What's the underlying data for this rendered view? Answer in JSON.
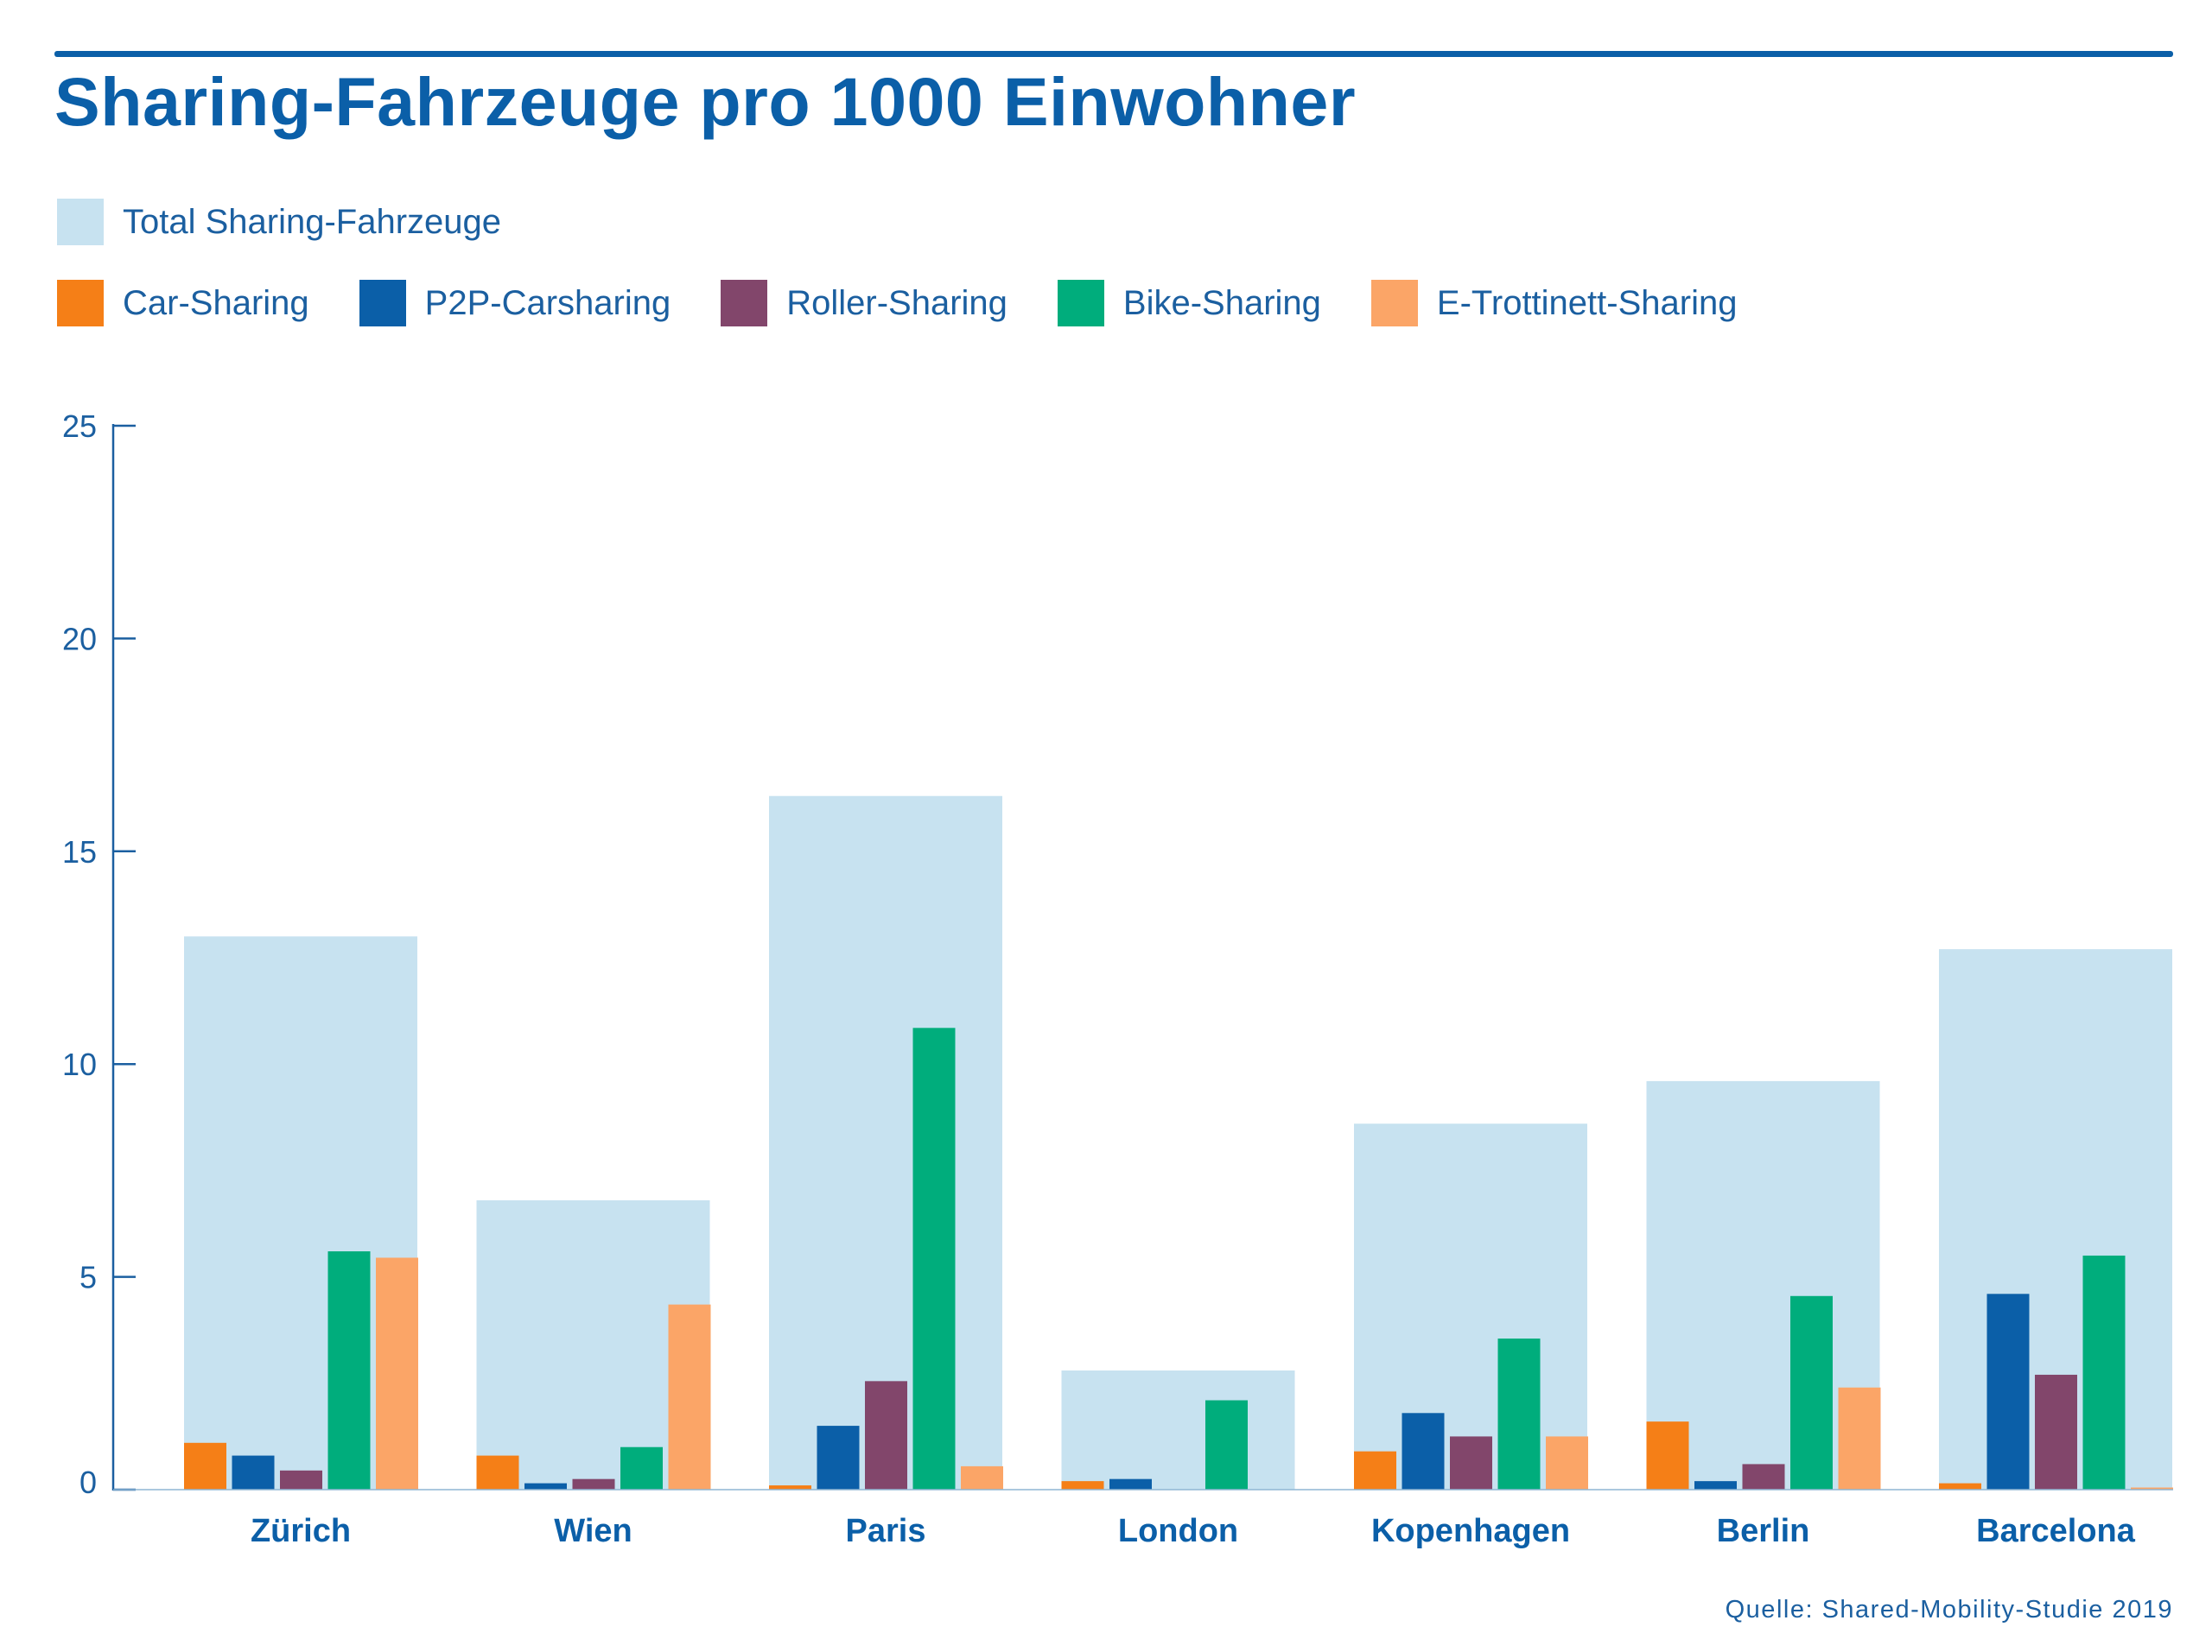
{
  "title": "Sharing-Fahrzeuge pro 1000 Einwohner",
  "source": "Quelle: Shared-Mobility-Studie 2019",
  "colors": {
    "brand": "#0b5fa8",
    "total": "#c7e2f0",
    "car": "#f57f17",
    "p2p": "#0b5fa8",
    "roller": "#82466b",
    "bike": "#00ad7c",
    "trott": "#fba567"
  },
  "chart_data": {
    "type": "bar",
    "title": "Sharing-Fahrzeuge pro 1000 Einwohner",
    "xlabel": "",
    "ylabel": "",
    "ylim": [
      0,
      25
    ],
    "yticks": [
      0,
      5,
      10,
      15,
      20,
      25
    ],
    "grid": false,
    "legend_position": "top-left",
    "categories": [
      "Zürich",
      "Wien",
      "Paris",
      "London",
      "Kopenhagen",
      "Berlin",
      "Barcelona"
    ],
    "total": {
      "name": "Total Sharing-Fahrzeuge",
      "color": "#c7e2f0",
      "values": [
        13.0,
        6.8,
        16.3,
        2.8,
        8.6,
        9.6,
        12.7
      ]
    },
    "series": [
      {
        "name": "Car-Sharing",
        "color": "#f57f17",
        "values": [
          1.1,
          0.8,
          0.1,
          0.2,
          0.9,
          1.6,
          0.15
        ]
      },
      {
        "name": "P2P-Carsharing",
        "color": "#0b5fa8",
        "values": [
          0.8,
          0.15,
          1.5,
          0.25,
          1.8,
          0.2,
          4.6
        ]
      },
      {
        "name": "Roller-Sharing",
        "color": "#82466b",
        "values": [
          0.45,
          0.25,
          2.55,
          0.0,
          1.25,
          0.6,
          2.7
        ]
      },
      {
        "name": "Bike-Sharing",
        "color": "#00ad7c",
        "values": [
          5.6,
          1.0,
          10.85,
          2.1,
          3.55,
          4.55,
          5.5
        ]
      },
      {
        "name": "E-Trottinett-Sharing",
        "color": "#fba567",
        "values": [
          5.45,
          4.35,
          0.55,
          0.0,
          1.25,
          2.4,
          0.05
        ]
      }
    ]
  }
}
